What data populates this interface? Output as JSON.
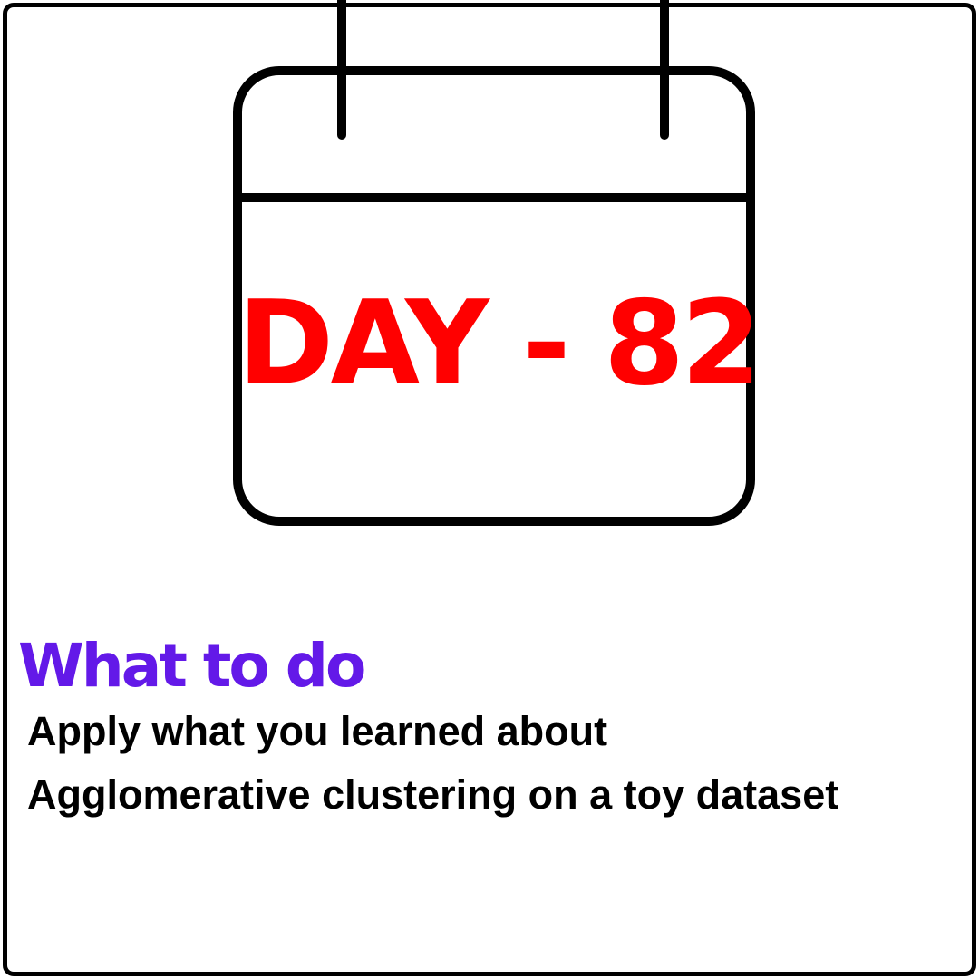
{
  "calendar": {
    "icon": "calendar-icon",
    "day_label": "DAY - 82",
    "day_color": "#ff0000"
  },
  "section": {
    "heading": "What to do",
    "heading_color": "#6319e8",
    "lines": [
      "Apply what you learned about",
      "Agglomerative clustering on a toy dataset"
    ]
  }
}
